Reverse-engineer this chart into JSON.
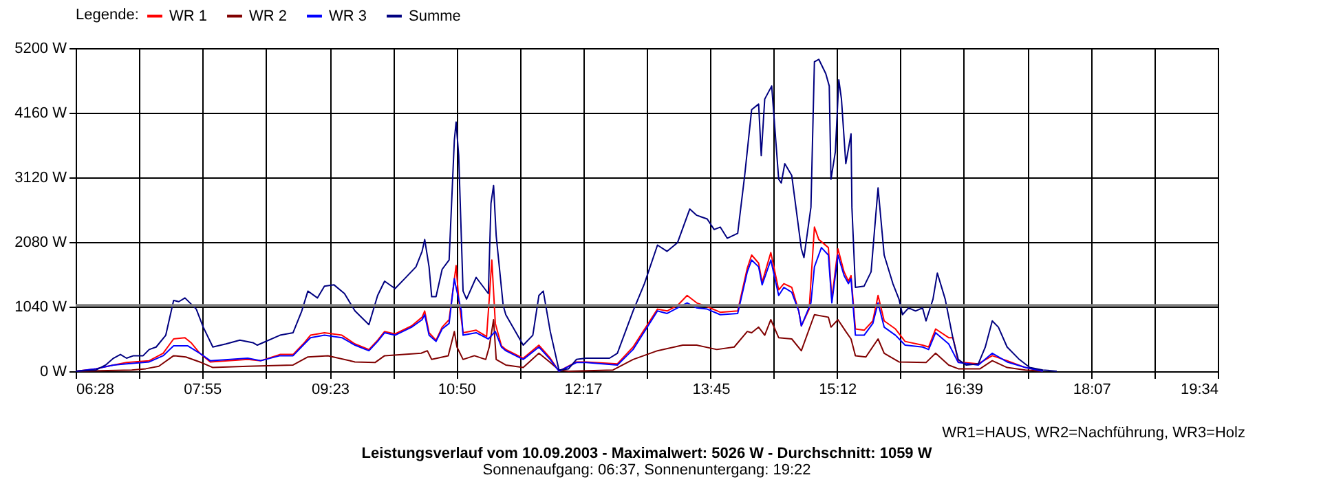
{
  "chart_data": {
    "type": "line",
    "title": "Leistungsverlauf vom 10.09.2003 - Maximalwert: 5026 W - Durchschnitt: 1059 W",
    "subtitle": "Sonnenaufgang: 06:37, Sonnenuntergang: 19:22",
    "annotations": [
      "WR1=HAUS, WR2=Nachführung, WR3=Holz"
    ],
    "legend_title": "Legende:",
    "legend": "top left",
    "grid": true,
    "line_style": "solid",
    "marker": "none",
    "xlim": [
      6.4667,
      19.5667
    ],
    "xticks": [
      {
        "value": 6.4667,
        "label": "06:28"
      },
      {
        "value": 7.1917,
        "label": null
      },
      {
        "value": 7.9167,
        "label": "07:55"
      },
      {
        "value": 8.65,
        "label": null
      },
      {
        "value": 9.3833,
        "label": "09:23"
      },
      {
        "value": 10.1083,
        "label": null
      },
      {
        "value": 10.8333,
        "label": "10:50"
      },
      {
        "value": 11.5583,
        "label": null
      },
      {
        "value": 12.2833,
        "label": "12:17"
      },
      {
        "value": 13.0167,
        "label": null
      },
      {
        "value": 13.75,
        "label": "13:45"
      },
      {
        "value": 14.475,
        "label": null
      },
      {
        "value": 15.2,
        "label": "15:12"
      },
      {
        "value": 15.925,
        "label": null
      },
      {
        "value": 16.65,
        "label": "16:39"
      },
      {
        "value": 17.3833,
        "label": null
      },
      {
        "value": 18.1167,
        "label": "18:07"
      },
      {
        "value": 18.8417,
        "label": null
      },
      {
        "value": 19.5667,
        "label": "19:34"
      }
    ],
    "ylim": [
      0,
      5200
    ],
    "yticks": [
      {
        "value": 0,
        "label": "0 W"
      },
      {
        "value": 1040,
        "label": "1040 W"
      },
      {
        "value": 2080,
        "label": "2080 W"
      },
      {
        "value": 3120,
        "label": "3120 W"
      },
      {
        "value": 4160,
        "label": "4160 W"
      },
      {
        "value": 5200,
        "label": "5200 W"
      }
    ],
    "ref_lines": [
      {
        "axis": "y",
        "value": 1059,
        "label": null,
        "color": "#808080"
      }
    ],
    "series": [
      {
        "name": "WR 1",
        "color": "#ff0000",
        "x": [
          6.47,
          6.7,
          6.9,
          7.05,
          7.31,
          7.47,
          7.59,
          7.72,
          7.79,
          7.89,
          8.01,
          8.44,
          8.59,
          8.81,
          8.96,
          9.09,
          9.16,
          9.32,
          9.52,
          9.67,
          9.83,
          9.93,
          10.01,
          10.13,
          10.32,
          10.44,
          10.47,
          10.52,
          10.6,
          10.67,
          10.75,
          10.83,
          10.86,
          10.91,
          11.06,
          11.18,
          11.21,
          11.24,
          11.28,
          11.35,
          11.4,
          11.6,
          11.78,
          11.91,
          12.01,
          12.21,
          12.32,
          12.68,
          12.86,
          13.14,
          13.25,
          13.37,
          13.48,
          13.59,
          13.71,
          13.86,
          14.06,
          14.17,
          14.22,
          14.3,
          14.34,
          14.44,
          14.53,
          14.59,
          14.68,
          14.76,
          14.79,
          14.88,
          14.94,
          14.99,
          15.1,
          15.14,
          15.21,
          15.28,
          15.33,
          15.36,
          15.41,
          15.51,
          15.61,
          15.67,
          15.74,
          15.87,
          15.98,
          16.18,
          16.25,
          16.33,
          16.48,
          16.53,
          16.59,
          16.82,
          16.98,
          17.15,
          17.36,
          17.56
        ],
        "values": [
          0,
          40,
          100,
          140,
          170,
          290,
          520,
          540,
          460,
          290,
          150,
          190,
          170,
          270,
          270,
          460,
          580,
          620,
          580,
          440,
          350,
          500,
          640,
          600,
          730,
          870,
          970,
          620,
          500,
          710,
          830,
          1700,
          1160,
          620,
          660,
          560,
          1160,
          1790,
          770,
          410,
          350,
          210,
          420,
          210,
          0,
          150,
          150,
          120,
          390,
          1000,
          970,
          1060,
          1220,
          1100,
          1040,
          950,
          970,
          1660,
          1870,
          1740,
          1430,
          1910,
          1310,
          1410,
          1350,
          970,
          730,
          1000,
          2320,
          2120,
          1990,
          1160,
          1970,
          1600,
          1450,
          1540,
          680,
          660,
          810,
          1220,
          810,
          680,
          480,
          420,
          390,
          680,
          540,
          540,
          150,
          120,
          250,
          170,
          60,
          0
        ]
      },
      {
        "name": "WR 2",
        "color": "#800000",
        "x": [
          6.47,
          7.11,
          7.27,
          7.42,
          7.59,
          7.73,
          7.89,
          8.04,
          8.44,
          8.96,
          9.13,
          9.36,
          9.67,
          9.9,
          10.01,
          10.43,
          10.5,
          10.55,
          10.74,
          10.81,
          10.84,
          10.91,
          11.04,
          11.17,
          11.21,
          11.26,
          11.29,
          11.4,
          11.6,
          11.78,
          11.91,
          12.01,
          12.12,
          12.63,
          12.86,
          13.14,
          13.43,
          13.59,
          13.82,
          14.02,
          14.17,
          14.22,
          14.3,
          14.37,
          14.44,
          14.53,
          14.68,
          14.79,
          14.94,
          15.1,
          15.13,
          15.21,
          15.3,
          15.36,
          15.41,
          15.53,
          15.67,
          15.74,
          15.91,
          16.22,
          16.33,
          16.48,
          16.59,
          16.84,
          16.98,
          17.15,
          17.36,
          17.56
        ],
        "values": [
          0,
          20,
          40,
          80,
          250,
          230,
          150,
          60,
          80,
          100,
          230,
          250,
          150,
          140,
          250,
          290,
          330,
          190,
          250,
          640,
          390,
          190,
          250,
          190,
          390,
          830,
          190,
          100,
          60,
          290,
          140,
          20,
          0,
          20,
          190,
          330,
          420,
          420,
          350,
          390,
          640,
          620,
          710,
          580,
          830,
          540,
          520,
          330,
          910,
          870,
          710,
          830,
          640,
          520,
          250,
          230,
          520,
          290,
          150,
          140,
          290,
          100,
          40,
          40,
          170,
          60,
          20,
          0
        ]
      },
      {
        "name": "WR 3",
        "color": "#0000ff",
        "x": [
          6.47,
          6.7,
          6.9,
          7.05,
          7.31,
          7.47,
          7.59,
          7.75,
          7.89,
          8.01,
          8.44,
          8.59,
          8.81,
          8.96,
          9.09,
          9.16,
          9.32,
          9.52,
          9.67,
          9.83,
          9.93,
          10.01,
          10.13,
          10.32,
          10.44,
          10.47,
          10.52,
          10.6,
          10.67,
          10.75,
          10.81,
          10.83,
          10.89,
          10.91,
          11.06,
          11.2,
          11.28,
          11.35,
          11.4,
          11.6,
          11.78,
          11.91,
          12.01,
          12.21,
          12.32,
          12.68,
          12.86,
          13.14,
          13.25,
          13.37,
          13.48,
          13.59,
          13.71,
          13.86,
          14.06,
          14.17,
          14.22,
          14.3,
          14.34,
          14.44,
          14.53,
          14.59,
          14.68,
          14.76,
          14.79,
          14.9,
          14.94,
          15.02,
          15.1,
          15.14,
          15.21,
          15.28,
          15.33,
          15.36,
          15.41,
          15.51,
          15.61,
          15.67,
          15.74,
          15.87,
          15.98,
          16.18,
          16.25,
          16.33,
          16.48,
          16.59,
          16.82,
          16.98,
          17.15,
          17.36,
          17.56
        ],
        "values": [
          0,
          40,
          100,
          120,
          150,
          250,
          410,
          410,
          290,
          170,
          210,
          170,
          250,
          250,
          440,
          540,
          580,
          540,
          420,
          330,
          480,
          620,
          580,
          710,
          830,
          910,
          580,
          480,
          680,
          770,
          1490,
          1350,
          970,
          580,
          620,
          520,
          640,
          390,
          330,
          190,
          390,
          190,
          0,
          140,
          140,
          100,
          350,
          970,
          930,
          1020,
          1100,
          1020,
          1000,
          910,
          930,
          1600,
          1790,
          1680,
          1390,
          1790,
          1220,
          1350,
          1270,
          970,
          730,
          1100,
          1680,
          1990,
          1870,
          1100,
          1870,
          1540,
          1410,
          1490,
          580,
          580,
          770,
          1100,
          710,
          580,
          420,
          390,
          350,
          620,
          440,
          140,
          100,
          290,
          150,
          60,
          0
        ]
      },
      {
        "name": "Summe",
        "color": "#000080",
        "x": [
          6.47,
          6.7,
          6.81,
          6.9,
          6.98,
          7.05,
          7.13,
          7.24,
          7.31,
          7.39,
          7.5,
          7.59,
          7.65,
          7.72,
          7.85,
          7.93,
          8.04,
          8.19,
          8.35,
          8.5,
          8.55,
          8.81,
          8.96,
          9.06,
          9.13,
          9.24,
          9.32,
          9.43,
          9.55,
          9.67,
          9.83,
          9.93,
          10.01,
          10.13,
          10.24,
          10.37,
          10.44,
          10.47,
          10.52,
          10.55,
          10.6,
          10.67,
          10.75,
          10.81,
          10.83,
          10.86,
          10.91,
          10.95,
          11.06,
          11.2,
          11.23,
          11.26,
          11.29,
          11.37,
          11.4,
          11.6,
          11.71,
          11.78,
          11.83,
          11.91,
          12.01,
          12.12,
          12.21,
          12.32,
          12.59,
          12.68,
          12.86,
          12.99,
          13.14,
          13.25,
          13.37,
          13.51,
          13.59,
          13.71,
          13.79,
          13.86,
          13.94,
          14.06,
          14.14,
          14.22,
          14.3,
          14.33,
          14.37,
          14.45,
          14.53,
          14.56,
          14.6,
          14.68,
          14.79,
          14.82,
          14.9,
          14.94,
          14.99,
          15.07,
          15.11,
          15.13,
          15.18,
          15.22,
          15.25,
          15.3,
          15.36,
          15.37,
          15.41,
          15.51,
          15.59,
          15.64,
          15.67,
          15.74,
          15.84,
          15.91,
          15.95,
          16.02,
          16.1,
          16.18,
          16.22,
          16.3,
          16.35,
          16.44,
          16.53,
          16.59,
          16.68,
          16.82,
          16.9,
          16.98,
          17.05,
          17.15,
          17.29,
          17.41,
          17.56,
          17.72
        ],
        "values": [
          0,
          20,
          100,
          210,
          270,
          210,
          250,
          250,
          350,
          390,
          580,
          1140,
          1120,
          1180,
          1000,
          710,
          390,
          440,
          500,
          460,
          420,
          580,
          620,
          970,
          1290,
          1180,
          1370,
          1390,
          1250,
          970,
          750,
          1220,
          1450,
          1330,
          1490,
          1680,
          1930,
          2120,
          1680,
          1200,
          1200,
          1640,
          1790,
          3720,
          4010,
          3470,
          1290,
          1160,
          1510,
          1250,
          2700,
          2990,
          2180,
          1060,
          910,
          420,
          580,
          1220,
          1290,
          640,
          20,
          40,
          190,
          210,
          210,
          290,
          970,
          1410,
          2030,
          1930,
          2070,
          2610,
          2510,
          2450,
          2280,
          2320,
          2140,
          2220,
          3150,
          4210,
          4300,
          3470,
          4380,
          4590,
          3090,
          3030,
          3340,
          3150,
          1970,
          1830,
          2640,
          4980,
          5020,
          4790,
          4590,
          3090,
          3530,
          4690,
          4380,
          3340,
          3820,
          2640,
          1350,
          1370,
          1600,
          2450,
          2950,
          1870,
          1410,
          1160,
          910,
          1020,
          970,
          1020,
          810,
          1160,
          1580,
          1160,
          520,
          190,
          100,
          120,
          390,
          810,
          710,
          390,
          190,
          60,
          20,
          0
        ]
      }
    ]
  }
}
